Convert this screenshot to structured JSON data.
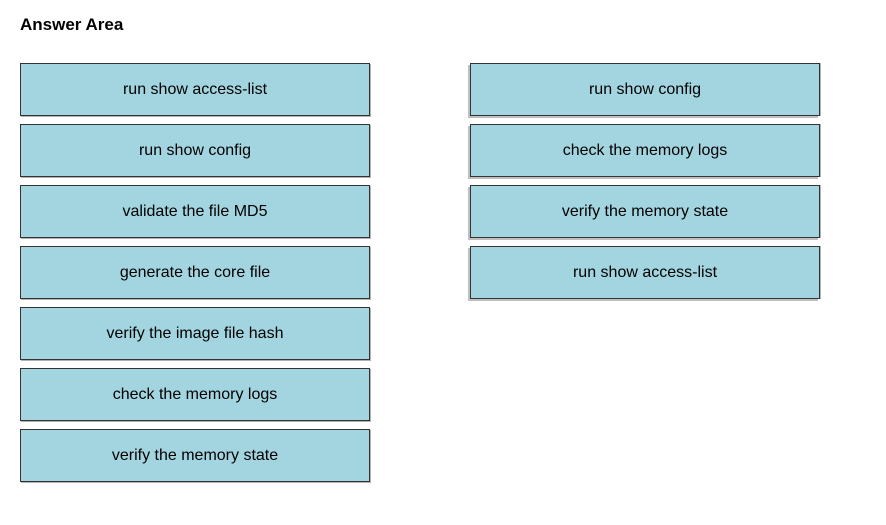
{
  "title": "Answer Area",
  "styling": {
    "item_bg_color": "#a3d5e0",
    "item_border_color": "#333333",
    "item_width": 350,
    "item_height": 53,
    "item_fontsize": 16,
    "title_fontsize": 17,
    "column_gap": 100,
    "item_gap": 8,
    "background_color": "#ffffff",
    "text_color": "#000000"
  },
  "left_column": [
    "run show access-list",
    "run show config",
    "validate the file MD5",
    "generate the core file",
    "verify the image file hash",
    "check the memory logs",
    "verify the memory state"
  ],
  "right_column": [
    "run show config",
    "check the memory logs",
    "verify the memory state",
    "run show access-list"
  ]
}
